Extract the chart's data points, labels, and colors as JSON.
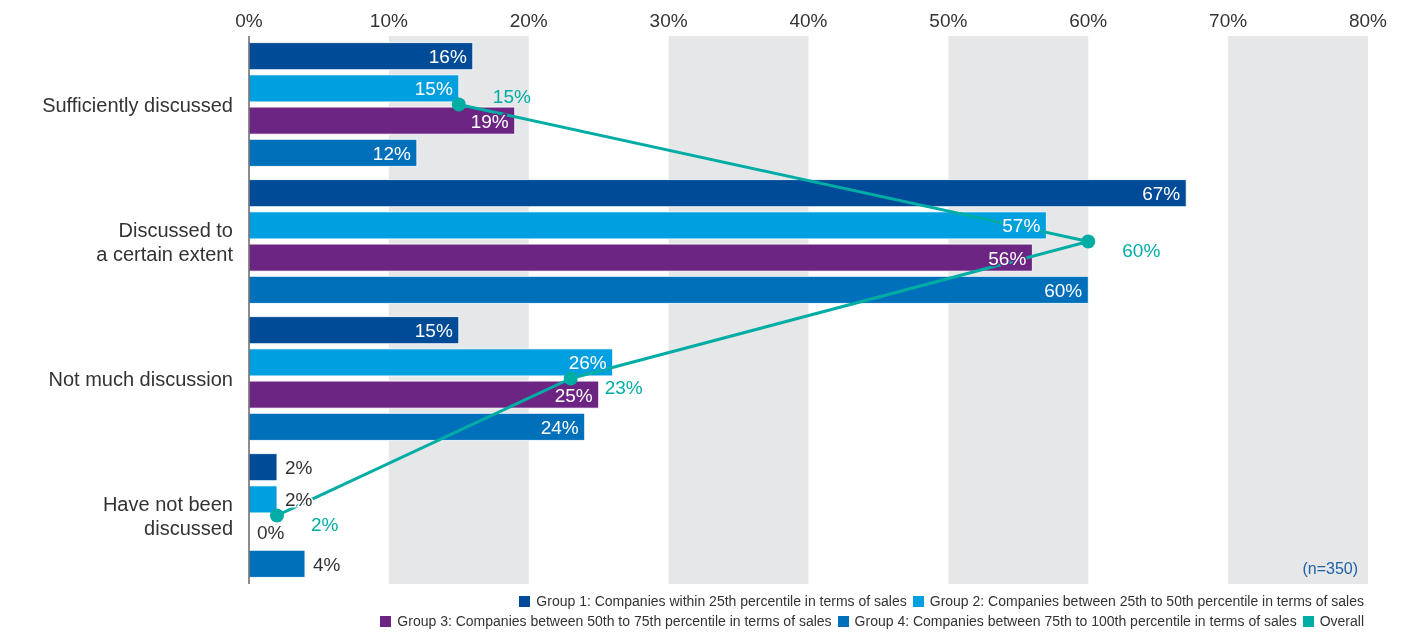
{
  "chart_data": {
    "type": "bar",
    "orientation": "horizontal",
    "categories": [
      "Sufficiently discussed",
      "Discussed to\na certain extent",
      "Not much discussion",
      "Have not been\ndiscussed"
    ],
    "series": [
      {
        "name": "Group 1: Companies within 25th percentile in terms of sales",
        "color": "#004b97",
        "values": [
          16,
          67,
          15,
          2
        ],
        "value_labels": [
          "16%",
          "67%",
          "15%",
          "2%"
        ]
      },
      {
        "name": "Group 2: Companies between 25th to 50th percentile in terms of sales",
        "color": "#009fdf",
        "values": [
          15,
          57,
          26,
          2
        ],
        "value_labels": [
          "15%",
          "57%",
          "26%",
          "2%"
        ]
      },
      {
        "name": "Group 3: Companies between 50th to 75th percentile in terms of sales",
        "color": "#6c2583",
        "values": [
          19,
          56,
          25,
          0
        ],
        "value_labels": [
          "19%",
          "56%",
          "25%",
          "0%"
        ]
      },
      {
        "name": "Group 4: Companies between 75th to 100th percentile in terms of sales",
        "color": "#0070bb",
        "values": [
          12,
          60,
          24,
          4
        ],
        "value_labels": [
          "12%",
          "60%",
          "24%",
          "4%"
        ]
      },
      {
        "name": "Overall",
        "color": "#00ada5",
        "type": "line",
        "values": [
          15,
          60,
          23,
          2
        ],
        "value_labels": [
          "15%",
          "60%",
          "23%",
          "2%"
        ]
      }
    ],
    "xlim": [
      0,
      80
    ],
    "xticks": [
      {
        "value": 0,
        "label": "0%"
      },
      {
        "value": 10,
        "label": "10%"
      },
      {
        "value": 20,
        "label": "20%"
      },
      {
        "value": 30,
        "label": "30%"
      },
      {
        "value": 40,
        "label": "40%"
      },
      {
        "value": 50,
        "label": "50%"
      },
      {
        "value": 60,
        "label": "60%"
      },
      {
        "value": 70,
        "label": "70%"
      },
      {
        "value": 80,
        "label": "80%"
      }
    ],
    "bands": [
      {
        "axis": "x",
        "from": 10,
        "to": 20,
        "color": "#e6e7e8"
      },
      {
        "axis": "x",
        "from": 30,
        "to": 40,
        "color": "#e6e7e8"
      },
      {
        "axis": "x",
        "from": 50,
        "to": 60,
        "color": "#e6e7e8"
      },
      {
        "axis": "x",
        "from": 70,
        "to": 80,
        "color": "#e6e7e8"
      }
    ],
    "marker": "circle",
    "legend": "bottom right",
    "annotations": [
      "(n=350)"
    ]
  }
}
